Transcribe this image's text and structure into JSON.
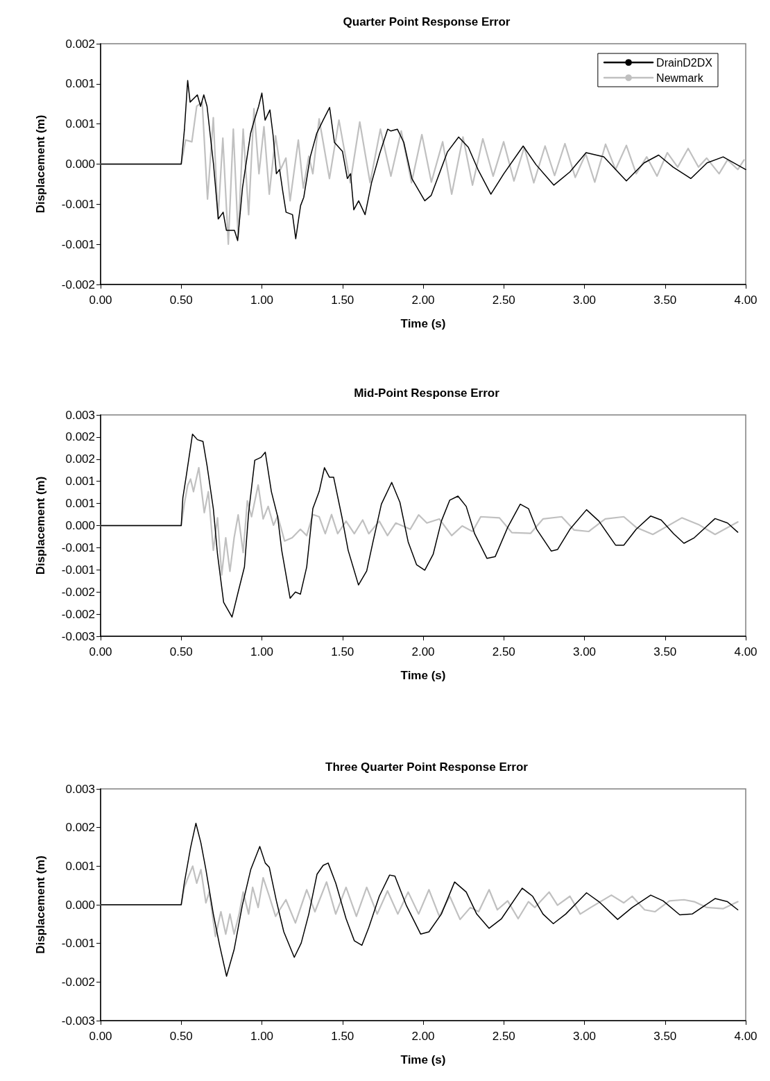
{
  "chart_data": [
    {
      "type": "line",
      "title": "Quarter Point Response Error",
      "xlabel": "Time (s)",
      "ylabel": "Displacement (m)",
      "xlim": [
        0,
        4
      ],
      "xticks": [
        {
          "value": 0,
          "label": "0.00"
        },
        {
          "value": 0.5,
          "label": "0.50"
        },
        {
          "value": 1,
          "label": "1.00"
        },
        {
          "value": 1.5,
          "label": "1.50"
        },
        {
          "value": 2,
          "label": "2.00"
        },
        {
          "value": 2.5,
          "label": "2.50"
        },
        {
          "value": 3,
          "label": "3.00"
        },
        {
          "value": 3.5,
          "label": "3.50"
        },
        {
          "value": 4,
          "label": "4.00"
        }
      ],
      "ylim": [
        -0.002,
        0.002
      ],
      "yticks": [
        {
          "value": -0.002,
          "label": "-0.002"
        },
        {
          "value": -0.001333,
          "label": "-0.001"
        },
        {
          "value": -0.000667,
          "label": "-0.001"
        },
        {
          "value": 0,
          "label": "0.000"
        },
        {
          "value": 0.000667,
          "label": "0.001"
        },
        {
          "value": 0.001333,
          "label": "0.001"
        },
        {
          "value": 0.002,
          "label": "0.002"
        }
      ],
      "grid": false,
      "legend": "top right",
      "marker": "none",
      "line_style": "solid",
      "series": [
        {
          "name": "DrainD2DX",
          "color": "#000000",
          "x": [
            0,
            0.5,
            0.52,
            0.54,
            0.555,
            0.6,
            0.62,
            0.64,
            0.66,
            0.7,
            0.73,
            0.76,
            0.78,
            0.83,
            0.85,
            0.88,
            0.93,
            0.95,
            0.98,
            1.0,
            1.02,
            1.05,
            1.07,
            1.09,
            1.11,
            1.13,
            1.15,
            1.19,
            1.21,
            1.24,
            1.26,
            1.3,
            1.34,
            1.38,
            1.42,
            1.45,
            1.5,
            1.53,
            1.55,
            1.57,
            1.6,
            1.64,
            1.68,
            1.73,
            1.78,
            1.8,
            1.84,
            1.88,
            1.93,
            2.01,
            2.05,
            2.1,
            2.15,
            2.22,
            2.28,
            2.34,
            2.42,
            2.5,
            2.62,
            2.7,
            2.81,
            2.91,
            3.01,
            3.12,
            3.26,
            3.37,
            3.46,
            3.55,
            3.66,
            3.76,
            3.86,
            4.0
          ],
          "values": [
            0,
            0,
            0.00058,
            0.00139,
            0.00103,
            0.00115,
            0.00096,
            0.00115,
            0.00096,
            0,
            -0.00091,
            -0.0008,
            -0.0011,
            -0.0011,
            -0.00127,
            -0.00039,
            0.00051,
            0.0007,
            0.00096,
            0.00118,
            0.00073,
            0.0009,
            0.00047,
            -0.00016,
            -9e-05,
            -0.00046,
            -0.0008,
            -0.00084,
            -0.00124,
            -0.00069,
            -0.00055,
            0.00012,
            0.00051,
            0.00073,
            0.00094,
            0.00036,
            0.00021,
            -0.00024,
            -0.00016,
            -0.00076,
            -0.00061,
            -0.00084,
            -0.00031,
            0.00017,
            0.00058,
            0.00055,
            0.00058,
            0.00036,
            -0.00024,
            -0.00061,
            -0.00052,
            -0.00016,
            0.0002,
            0.00045,
            0.00028,
            -9e-05,
            -0.0005,
            -0.00016,
            0.0003,
            -1e-05,
            -0.00035,
            -0.00013,
            0.00019,
            0.00012,
            -0.00028,
            2e-05,
            0.00015,
            -5e-05,
            -0.00024,
            2e-05,
            0.00012,
            -9e-05
          ]
        },
        {
          "name": "Newmark",
          "color": "#c0c0c0",
          "x": [
            0,
            0.5,
            0.527,
            0.566,
            0.596,
            0.63,
            0.663,
            0.699,
            0.728,
            0.758,
            0.792,
            0.823,
            0.853,
            0.884,
            0.918,
            0.951,
            0.982,
            1.013,
            1.046,
            1.085,
            1.116,
            1.149,
            1.175,
            1.226,
            1.257,
            1.291,
            1.316,
            1.355,
            1.419,
            1.478,
            1.548,
            1.607,
            1.671,
            1.735,
            1.8,
            1.864,
            1.928,
            1.992,
            2.051,
            2.121,
            2.177,
            2.247,
            2.306,
            2.37,
            2.434,
            2.499,
            2.563,
            2.627,
            2.686,
            2.756,
            2.815,
            2.879,
            2.943,
            3.008,
            3.064,
            3.131,
            3.193,
            3.26,
            3.321,
            3.386,
            3.45,
            3.514,
            3.578,
            3.643,
            3.707,
            3.758,
            3.835,
            3.887,
            3.951,
            3.99
          ],
          "values": [
            0,
            0,
            0.0004,
            0.00037,
            0.00096,
            0.00103,
            -0.00058,
            0.00077,
            -0.00091,
            0.00043,
            -0.00133,
            0.00058,
            -0.00121,
            0.00058,
            -0.00084,
            0.00092,
            -0.00016,
            0.00062,
            -0.0005,
            0.00047,
            -9e-05,
            0.0001,
            -0.00061,
            0.0004,
            -0.0004,
            0.00013,
            -0.00016,
            0.00075,
            -0.00024,
            0.00073,
            -0.00031,
            0.0007,
            -0.00031,
            0.00058,
            -0.0002,
            0.00055,
            -0.00031,
            0.00049,
            -0.0003,
            0.00037,
            -0.0005,
            0.00045,
            -0.00035,
            0.00042,
            -0.0002,
            0.00037,
            -0.00028,
            0.00028,
            -0.00031,
            0.0003,
            -0.00019,
            0.00034,
            -0.00022,
            0.00017,
            -0.0003,
            0.00033,
            -9e-05,
            0.00031,
            -0.00016,
            0.00012,
            -0.0002,
            0.00019,
            -5e-05,
            0.00026,
            -5e-05,
            0.0001,
            -0.00016,
            7e-05,
            -9e-05,
            7e-05
          ]
        }
      ]
    },
    {
      "type": "line",
      "title": "Mid-Point Response Error",
      "xlabel": "Time (s)",
      "ylabel": "Displacement (m)",
      "xlim": [
        0,
        4
      ],
      "xticks": [
        {
          "value": 0,
          "label": "0.00"
        },
        {
          "value": 0.5,
          "label": "0.50"
        },
        {
          "value": 1,
          "label": "1.00"
        },
        {
          "value": 1.5,
          "label": "1.50"
        },
        {
          "value": 2,
          "label": "2.00"
        },
        {
          "value": 2.5,
          "label": "2.50"
        },
        {
          "value": 3,
          "label": "3.00"
        },
        {
          "value": 3.5,
          "label": "3.50"
        },
        {
          "value": 4,
          "label": "4.00"
        }
      ],
      "ylim": [
        -0.003,
        0.003
      ],
      "yticks": [
        {
          "value": -0.003,
          "label": "-0.003"
        },
        {
          "value": -0.0024,
          "label": "-0.002"
        },
        {
          "value": -0.0018,
          "label": "-0.002"
        },
        {
          "value": -0.0012,
          "label": "-0.001"
        },
        {
          "value": -0.0006,
          "label": "-0.001"
        },
        {
          "value": 0,
          "label": "0.000"
        },
        {
          "value": 0.0006,
          "label": "0.001"
        },
        {
          "value": 0.0012,
          "label": "0.001"
        },
        {
          "value": 0.0018,
          "label": "0.002"
        },
        {
          "value": 0.0024,
          "label": "0.002"
        },
        {
          "value": 0.003,
          "label": "0.003"
        }
      ],
      "grid": false,
      "marker": "none",
      "line_style": "solid",
      "series": [
        {
          "color": "#000000",
          "x": [
            0,
            0.5,
            0.51,
            0.53,
            0.57,
            0.6,
            0.635,
            0.661,
            0.699,
            0.725,
            0.763,
            0.815,
            0.853,
            0.892,
            0.918,
            0.956,
            0.995,
            1.021,
            1.059,
            1.098,
            1.123,
            1.175,
            1.208,
            1.239,
            1.278,
            1.316,
            1.355,
            1.388,
            1.419,
            1.445,
            1.496,
            1.535,
            1.599,
            1.65,
            1.689,
            1.741,
            1.805,
            1.856,
            1.907,
            1.959,
            2.01,
            2.062,
            2.113,
            2.165,
            2.216,
            2.267,
            2.319,
            2.396,
            2.447,
            2.524,
            2.602,
            2.653,
            2.704,
            2.794,
            2.833,
            2.91,
            3.013,
            3.09,
            3.193,
            3.244,
            3.321,
            3.411,
            3.476,
            3.553,
            3.617,
            3.681,
            3.81,
            3.887,
            3.951
          ],
          "values": [
            0,
            0,
            0.00075,
            0.00131,
            0.00248,
            0.00233,
            0.00228,
            0.0016,
            0.00046,
            -0.00078,
            -0.00208,
            -0.00248,
            -0.0018,
            -0.00112,
            0.00035,
            0.00177,
            0.00185,
            0.00199,
            0.00092,
            0.00024,
            -0.00067,
            -0.00197,
            -0.0018,
            -0.00186,
            -0.00112,
            0.00046,
            0.00092,
            0.00157,
            0.00131,
            0.00131,
            0.00024,
            -0.00067,
            -0.00161,
            -0.00123,
            -0.00044,
            0.00058,
            0.00117,
            0.00063,
            -0.00044,
            -0.00106,
            -0.00121,
            -0.00078,
            0.00012,
            0.00069,
            0.0008,
            0.00052,
            -0.00022,
            -0.00089,
            -0.00084,
            -5e-05,
            0.00058,
            0.00046,
            -0.0001,
            -0.00069,
            -0.00065,
            -0.0001,
            0.00043,
            0.00012,
            -0.00053,
            -0.00053,
            -0.0001,
            0.00026,
            0.00015,
            -0.00022,
            -0.00048,
            -0.00033,
            0.00019,
            7e-05,
            -0.00018
          ]
        },
        {
          "color": "#c0c0c0",
          "x": [
            0,
            0.5,
            0.519,
            0.54,
            0.558,
            0.576,
            0.609,
            0.643,
            0.668,
            0.699,
            0.725,
            0.751,
            0.776,
            0.802,
            0.828,
            0.853,
            0.884,
            0.91,
            0.936,
            0.977,
            1.008,
            1.039,
            1.072,
            1.098,
            1.141,
            1.188,
            1.239,
            1.278,
            1.316,
            1.355,
            1.393,
            1.432,
            1.47,
            1.522,
            1.573,
            1.625,
            1.663,
            1.728,
            1.779,
            1.83,
            1.92,
            1.972,
            2.023,
            2.1,
            2.177,
            2.242,
            2.306,
            2.357,
            2.473,
            2.55,
            2.666,
            2.743,
            2.859,
            2.936,
            3.026,
            3.129,
            3.244,
            3.321,
            3.424,
            3.604,
            3.707,
            3.81,
            3.951
          ],
          "values": [
            0,
            0,
            0.00058,
            0.00109,
            0.00126,
            0.00092,
            0.00157,
            0.00035,
            0.00092,
            -0.00067,
            0.00021,
            -0.00134,
            -0.00033,
            -0.00124,
            -0.00033,
            0.00029,
            -0.00073,
            0.00067,
            0.00024,
            0.0011,
            0.00018,
            0.00052,
            1e-05,
            0.00026,
            -0.00042,
            -0.00033,
            -0.0001,
            -0.00027,
            0.0003,
            0.00024,
            -0.00022,
            0.0003,
            -0.00022,
            0.00012,
            -0.00022,
            0.00015,
            -0.00022,
            0.00012,
            -0.00027,
            7e-05,
            -0.0001,
            0.00029,
            7e-05,
            0.00018,
            -0.00027,
            -1e-05,
            -0.00016,
            0.00024,
            0.00021,
            -0.00019,
            -0.00021,
            0.00018,
            0.00024,
            -0.00012,
            -0.00016,
            0.00018,
            0.00024,
            -5e-05,
            -0.00024,
            0.00021,
            3e-05,
            -0.00024,
            0.0001
          ]
        }
      ]
    },
    {
      "type": "line",
      "title": "Three Quarter Point Response Error",
      "xlabel": "Time (s)",
      "ylabel": "Displacement (m)",
      "xlim": [
        0,
        4
      ],
      "xticks": [
        {
          "value": 0,
          "label": "0.00"
        },
        {
          "value": 0.5,
          "label": "0.50"
        },
        {
          "value": 1,
          "label": "1.00"
        },
        {
          "value": 1.5,
          "label": "1.50"
        },
        {
          "value": 2,
          "label": "2.00"
        },
        {
          "value": 2.5,
          "label": "2.50"
        },
        {
          "value": 3,
          "label": "3.00"
        },
        {
          "value": 3.5,
          "label": "3.50"
        },
        {
          "value": 4,
          "label": "4.00"
        }
      ],
      "ylim": [
        -0.003,
        0.003
      ],
      "yticks": [
        {
          "value": -0.003,
          "label": "-0.003"
        },
        {
          "value": -0.002,
          "label": "-0.002"
        },
        {
          "value": -0.001,
          "label": "-0.001"
        },
        {
          "value": 0,
          "label": "0.000"
        },
        {
          "value": 0.001,
          "label": "0.001"
        },
        {
          "value": 0.002,
          "label": "0.002"
        },
        {
          "value": 0.003,
          "label": "0.003"
        }
      ],
      "grid": false,
      "marker": "none",
      "line_style": "solid",
      "series": [
        {
          "color": "#000000",
          "x": [
            0,
            0.5,
            0.519,
            0.558,
            0.591,
            0.622,
            0.653,
            0.699,
            0.738,
            0.781,
            0.828,
            0.879,
            0.931,
            0.987,
            1.021,
            1.046,
            1.09,
            1.136,
            1.201,
            1.244,
            1.291,
            1.342,
            1.38,
            1.411,
            1.458,
            1.522,
            1.573,
            1.62,
            1.663,
            1.728,
            1.792,
            1.825,
            1.895,
            1.985,
            2.036,
            2.113,
            2.195,
            2.267,
            2.332,
            2.409,
            2.486,
            2.614,
            2.679,
            2.743,
            2.807,
            2.884,
            3.013,
            3.09,
            3.206,
            3.296,
            3.411,
            3.488,
            3.591,
            3.668,
            3.81,
            3.887,
            3.951
          ],
          "values": [
            0,
            0,
            0.00056,
            0.00148,
            0.00211,
            0.0016,
            0.00091,
            -0.00024,
            -0.00105,
            -0.00185,
            -0.00116,
            -1e-05,
            0.00091,
            0.00151,
            0.00108,
            0.00097,
            0.0001,
            -0.0007,
            -0.00136,
            -0.00099,
            -0.00024,
            0.00079,
            0.00102,
            0.00108,
            0.00056,
            -0.00036,
            -0.00093,
            -0.00105,
            -0.00059,
            0.00022,
            0.00077,
            0.00074,
            -1e-05,
            -0.00076,
            -0.0007,
            -0.00024,
            0.00059,
            0.00033,
            -0.00024,
            -0.00061,
            -0.00036,
            0.00043,
            0.00022,
            -0.00024,
            -0.00049,
            -0.00024,
            0.00031,
            8e-05,
            -0.00038,
            -7e-05,
            0.00025,
            0.0001,
            -0.00026,
            -0.00024,
            0.00016,
            8e-05,
            -0.00013
          ]
        },
        {
          "color": "#c0c0c0",
          "x": [
            0,
            0.5,
            0.519,
            0.54,
            0.571,
            0.596,
            0.622,
            0.653,
            0.674,
            0.712,
            0.746,
            0.776,
            0.802,
            0.828,
            0.859,
            0.884,
            0.918,
            0.943,
            0.977,
            1.008,
            1.046,
            1.085,
            1.149,
            1.208,
            1.278,
            1.329,
            1.401,
            1.458,
            1.522,
            1.586,
            1.65,
            1.715,
            1.779,
            1.843,
            1.907,
            1.972,
            2.036,
            2.1,
            2.165,
            2.229,
            2.293,
            2.344,
            2.409,
            2.46,
            2.524,
            2.589,
            2.653,
            2.692,
            2.781,
            2.833,
            2.91,
            2.974,
            3.039,
            3.167,
            3.244,
            3.296,
            3.373,
            3.437,
            3.527,
            3.617,
            3.681,
            3.758,
            3.861,
            3.951
          ],
          "values": [
            0,
            0,
            0.00045,
            0.00068,
            0.001,
            0.00056,
            0.00091,
            5e-05,
            0.00033,
            -0.00082,
            -0.00018,
            -0.00076,
            -0.00024,
            -0.00076,
            -0.00024,
            0.00033,
            -0.00024,
            0.00045,
            -7e-05,
            0.0007,
            0.00022,
            -0.0003,
            0.00013,
            -0.00047,
            0.00039,
            -0.00018,
            0.00059,
            -0.00024,
            0.00045,
            -0.0003,
            0.00045,
            -0.00024,
            0.00036,
            -0.00024,
            0.00033,
            -0.00024,
            0.00039,
            -0.0003,
            0.00022,
            -0.00038,
            -7e-05,
            -0.00018,
            0.00039,
            -0.00013,
            0.0001,
            -0.00036,
            8e-05,
            -7e-05,
            0.00033,
            -1e-05,
            0.00022,
            -0.00024,
            -7e-05,
            0.00025,
            5e-05,
            0.00022,
            -0.00013,
            -0.00018,
            0.0001,
            0.00013,
            8e-05,
            -7e-05,
            -0.0001,
            8e-05
          ]
        }
      ]
    }
  ]
}
